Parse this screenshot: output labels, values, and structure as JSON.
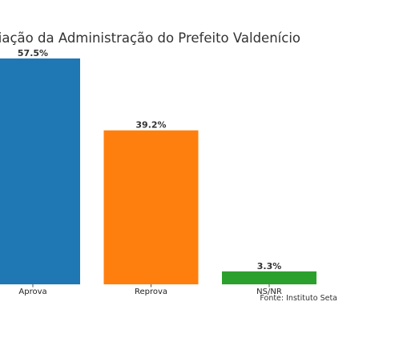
{
  "chart_data": {
    "type": "bar",
    "title": "Avaliação da Administração do Prefeito Valdenício",
    "categories": [
      "Aprova",
      "Reprova",
      "NS/NR"
    ],
    "values": [
      57.5,
      39.2,
      3.3
    ],
    "value_labels": [
      "57.5%",
      "39.2%",
      "3.3%"
    ],
    "colors": [
      "#1f77b4",
      "#ff7f0e",
      "#2ca02c"
    ],
    "xlabel": "",
    "ylabel": "",
    "ylim": [
      0,
      57.5
    ],
    "grid": false,
    "legend": "none",
    "source": "Fonte: Instituto Seta"
  }
}
